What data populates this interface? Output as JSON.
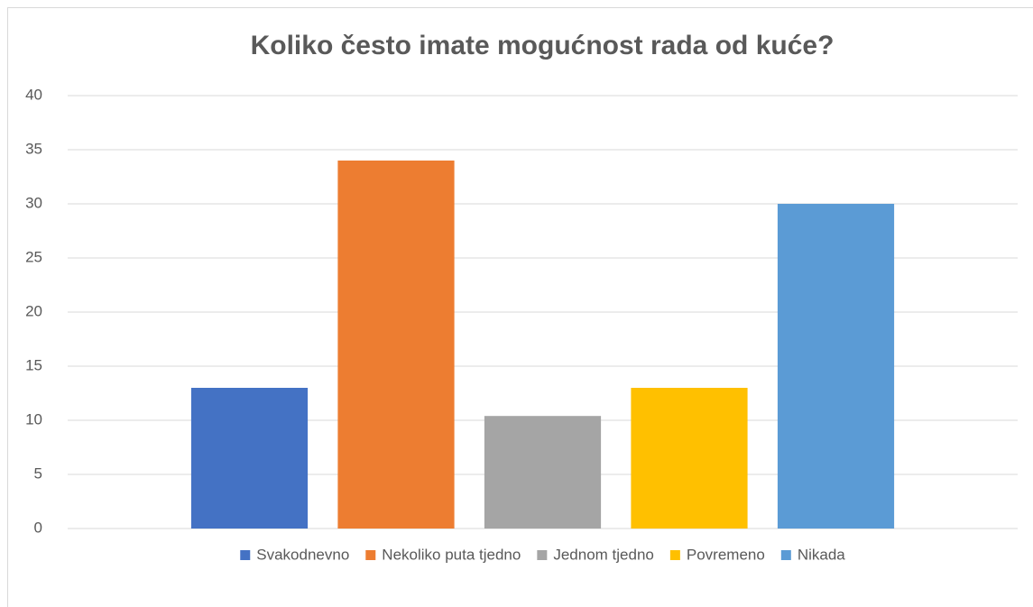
{
  "chart_data": {
    "type": "bar",
    "title": "Koliko često imate mogućnost rada od kuće?",
    "categories": [
      null
    ],
    "series": [
      {
        "name": "Svakodnevno",
        "color": "#4472c4",
        "values": [
          13
        ]
      },
      {
        "name": "Nekoliko puta tjedno",
        "color": "#ed7d31",
        "values": [
          34
        ]
      },
      {
        "name": "Jednom tjedno",
        "color": "#a5a5a5",
        "values": [
          10.4
        ]
      },
      {
        "name": "Povremeno",
        "color": "#ffc000",
        "values": [
          13
        ]
      },
      {
        "name": "Nikada",
        "color": "#5b9bd5",
        "values": [
          30
        ]
      }
    ],
    "ylim": [
      0,
      40
    ],
    "yticks": [
      0,
      5,
      10,
      15,
      20,
      25,
      30,
      35,
      40
    ],
    "grid": true,
    "legend": "bottom"
  }
}
